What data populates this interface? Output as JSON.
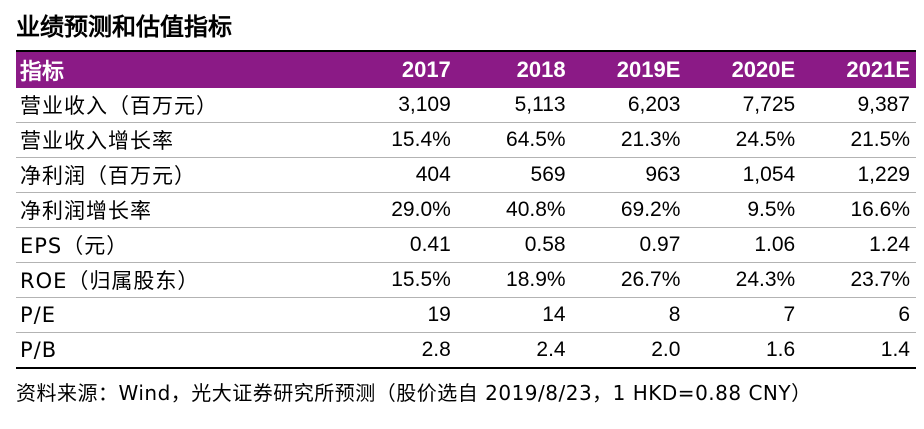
{
  "title": "业绩预测和估值指标",
  "table": {
    "header": [
      "指标",
      "2017",
      "2018",
      "2019E",
      "2020E",
      "2021E"
    ],
    "rows": [
      [
        "营业收入（百万元）",
        "3,109",
        "5,113",
        "6,203",
        "7,725",
        "9,387"
      ],
      [
        "营业收入增长率",
        "15.4%",
        "64.5%",
        "21.3%",
        "24.5%",
        "21.5%"
      ],
      [
        "净利润（百万元）",
        "404",
        "569",
        "963",
        "1,054",
        "1,229"
      ],
      [
        "净利润增长率",
        "29.0%",
        "40.8%",
        "69.2%",
        "9.5%",
        "16.6%"
      ],
      [
        "EPS（元）",
        "0.41",
        "0.58",
        "0.97",
        "1.06",
        "1.24"
      ],
      [
        "ROE（归属股东）",
        "15.5%",
        "18.9%",
        "26.7%",
        "24.3%",
        "23.7%"
      ],
      [
        "P/E",
        "19",
        "14",
        "8",
        "7",
        "6"
      ],
      [
        "P/B",
        "2.8",
        "2.4",
        "2.0",
        "1.6",
        "1.4"
      ]
    ]
  },
  "source": "资料来源：Wind，光大证券研究所预测（股价选自 2019/8/23，1 HKD=0.88 CNY）",
  "colors": {
    "header_bg": "#8b1a86",
    "header_text": "#ffffff"
  }
}
